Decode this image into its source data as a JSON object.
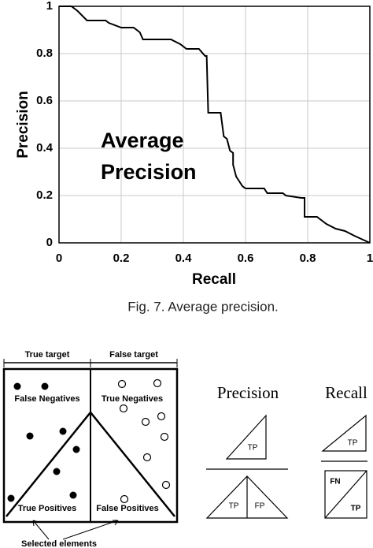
{
  "chart_data": {
    "type": "line",
    "x": [
      0,
      0.04,
      0.06,
      0.09,
      0.15,
      0.16,
      0.2,
      0.24,
      0.26,
      0.27,
      0.36,
      0.39,
      0.41,
      0.45,
      0.47,
      0.475,
      0.48,
      0.52,
      0.53,
      0.54,
      0.55,
      0.56,
      0.56,
      0.57,
      0.58,
      0.59,
      0.6,
      0.66,
      0.67,
      0.72,
      0.73,
      0.78,
      0.79,
      0.79,
      0.83,
      0.86,
      0.89,
      0.92,
      0.95,
      1
    ],
    "values": [
      1,
      1,
      0.98,
      0.94,
      0.94,
      0.93,
      0.91,
      0.91,
      0.89,
      0.86,
      0.86,
      0.84,
      0.82,
      0.82,
      0.79,
      0.79,
      0.55,
      0.55,
      0.45,
      0.44,
      0.39,
      0.38,
      0.33,
      0.28,
      0.26,
      0.24,
      0.23,
      0.23,
      0.21,
      0.21,
      0.2,
      0.19,
      0.19,
      0.11,
      0.11,
      0.08,
      0.06,
      0.05,
      0.03,
      0
    ],
    "color": "#000000",
    "xlim": [
      0,
      1
    ],
    "ylim": [
      0,
      1
    ],
    "xticks": [
      0,
      0.2,
      0.4,
      0.6,
      0.8,
      1
    ],
    "yticks": [
      0,
      0.2,
      0.4,
      0.6,
      0.8,
      1
    ],
    "grid": true,
    "x_label": "Recall",
    "y_label": "Precision",
    "annotation": "Average Precision",
    "caption": "Fig. 7. Average precision."
  },
  "diagram": {
    "headers": [
      "True target",
      "False target"
    ],
    "regions": [
      "False Negatives",
      "True Negatives",
      "True Positives",
      "False Positives"
    ],
    "selected": "Selected elements",
    "precision": {
      "title": "Precision",
      "top": "TP",
      "bottom_left": "TP",
      "bottom_right": "FP"
    },
    "recall": {
      "title": "Recall",
      "top": "TP",
      "box_top": "FN",
      "box_bottom": "TP"
    }
  }
}
